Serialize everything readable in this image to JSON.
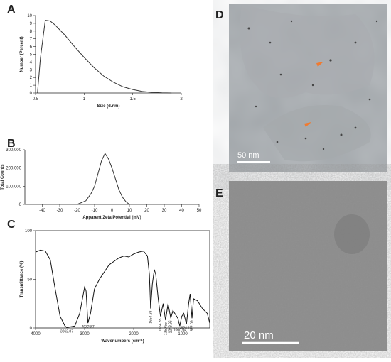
{
  "chart_data": [
    {
      "type": "line",
      "panel_label": "A",
      "xlabel": "Size (d.nm)",
      "ylabel": "Number (Percent)",
      "x": [
        0.52,
        0.55,
        0.6,
        0.65,
        0.7,
        0.8,
        0.9,
        1.0,
        1.1,
        1.2,
        1.3,
        1.4,
        1.5,
        1.6,
        1.7,
        1.8,
        1.9
      ],
      "values": [
        0,
        4.5,
        9.4,
        9.3,
        8.8,
        7.5,
        6.0,
        4.6,
        3.3,
        2.2,
        1.4,
        0.8,
        0.45,
        0.2,
        0.08,
        0.02,
        0
      ],
      "color": "#333333",
      "xlim": [
        0.5,
        2
      ],
      "ylim": [
        0,
        10
      ],
      "xticks": [
        0.5,
        1,
        1.5,
        2
      ],
      "yticks": [
        0,
        1,
        2,
        3,
        4,
        5,
        6,
        7,
        8,
        9,
        10
      ]
    },
    {
      "type": "line",
      "panel_label": "B",
      "xlabel": "Apparent Zeta Potential (mV)",
      "ylabel": "Total Counts",
      "x": [
        -20,
        -15,
        -12,
        -10,
        -8,
        -6,
        -4,
        -2,
        0,
        2,
        4,
        6,
        8,
        10
      ],
      "values": [
        0,
        20000,
        60000,
        100000,
        170000,
        240000,
        280000,
        250000,
        200000,
        140000,
        80000,
        40000,
        15000,
        0
      ],
      "color": "#333333",
      "xlim": [
        -50,
        50
      ],
      "ylim": [
        0,
        300000
      ],
      "xticks": [
        -40,
        -30,
        -20,
        -10,
        0,
        10,
        20,
        30,
        40,
        50
      ],
      "yticks": [
        0,
        {
          "value": 100000,
          "label": "100,000"
        },
        {
          "value": 200000,
          "label": "200,000"
        },
        {
          "value": 300000,
          "label": "300,000"
        }
      ]
    },
    {
      "type": "line",
      "panel_label": "C",
      "xlabel": "Wavenumbers (cm⁻¹)",
      "ylabel": "Transmittance (%)",
      "frame": true,
      "x": [
        4000,
        3900,
        3800,
        3700,
        3600,
        3500,
        3400,
        3362.87,
        3200,
        3100,
        3000,
        2970,
        2932.87,
        2880,
        2800,
        2700,
        2500,
        2300,
        2200,
        2100,
        2000,
        1900,
        1800,
        1720,
        1680,
        1654.88,
        1620,
        1580,
        1550,
        1500,
        1454.35,
        1400,
        1350.55,
        1300,
        1243.96,
        1200,
        1100,
        1060.54,
        1020,
        980,
        924.18,
        880,
        850,
        812.09,
        780,
        700,
        600,
        500,
        450
      ],
      "values": [
        78,
        80,
        79,
        70,
        40,
        12,
        2,
        0.5,
        2,
        15,
        42,
        38,
        5,
        15,
        40,
        50,
        65,
        72,
        74,
        73,
        76,
        78,
        79,
        74,
        55,
        20,
        45,
        60,
        55,
        30,
        12,
        25,
        8,
        25,
        10,
        18,
        10,
        2,
        12,
        15,
        4,
        25,
        35,
        10,
        30,
        28,
        20,
        15,
        5
      ],
      "color": "#111111",
      "xlim": [
        4000,
        450
      ],
      "ylim": [
        0,
        100
      ],
      "xticks": [
        4000,
        3000,
        2000,
        1000
      ],
      "yticks": [
        0,
        50,
        100
      ],
      "annotations": [
        {
          "text": "3362.87",
          "x": 3362.87
        },
        {
          "text": "2932.87",
          "x": 2932.87
        },
        {
          "text": "1654.88",
          "x": 1654.88
        },
        {
          "text": "1454.35",
          "x": 1454.35
        },
        {
          "text": "1350.55",
          "x": 1350.55
        },
        {
          "text": "1243.96",
          "x": 1243.96
        },
        {
          "text": "1060.54",
          "x": 1060.54
        },
        {
          "text": "924.18",
          "x": 924.18
        },
        {
          "text": "812.09",
          "x": 812.09
        }
      ]
    }
  ],
  "images": [
    {
      "panel_label": "D",
      "scale_bar": "50 nm"
    },
    {
      "panel_label": "E",
      "scale_bar": "20 nm"
    }
  ]
}
